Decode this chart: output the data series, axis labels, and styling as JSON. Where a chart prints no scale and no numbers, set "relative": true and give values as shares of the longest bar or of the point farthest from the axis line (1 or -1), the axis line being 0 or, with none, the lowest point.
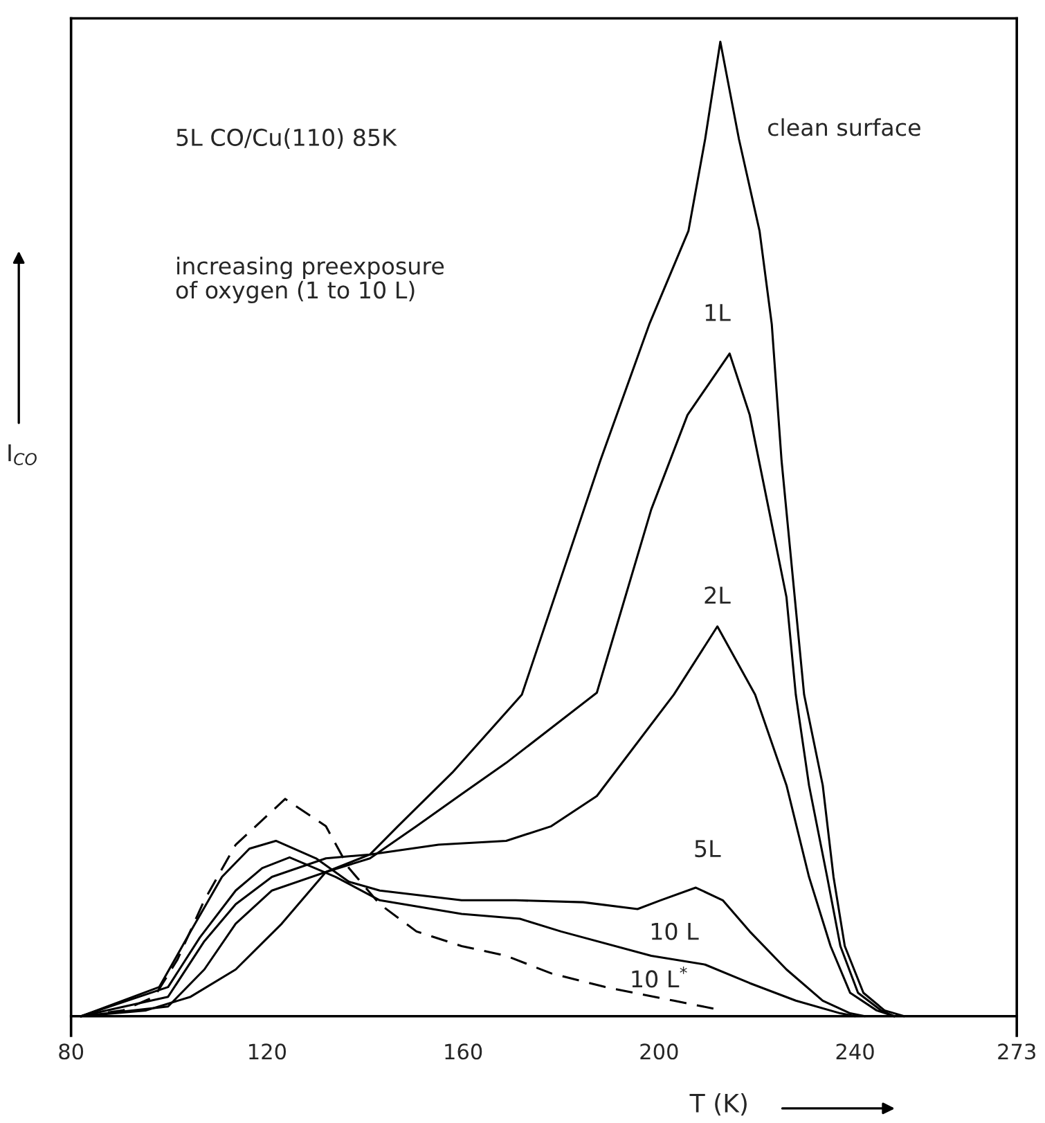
{
  "chart_data": {
    "type": "line",
    "relative": true,
    "xlabel": "T (K)",
    "ylabel": "I$_{CO}$",
    "xlim": [
      80,
      273
    ],
    "xticks": [
      80,
      120,
      160,
      200,
      240,
      273
    ],
    "legend": false,
    "grid": false,
    "marker": "none",
    "annotations": [
      "5L CO/Cu(110) 85K",
      "increasing preexposure\nof oxygen (1 to 10 L)"
    ],
    "series": [
      {
        "name": "clean surface",
        "color": "#000000",
        "line_style": "solid",
        "x": [
          82,
          95.3,
          104.4,
          113.6,
          123,
          132,
          141,
          146.7,
          157.8,
          172,
          188,
          198,
          206,
          209.4,
          212.5,
          216.3,
          220.5,
          223,
          225,
          229.6,
          233.4,
          235.6,
          237.9,
          241.7,
          246,
          250
        ],
        "values": [
          0,
          0.006,
          0.02,
          0.048,
          0.095,
          0.148,
          0.166,
          0.195,
          0.25,
          0.33,
          0.57,
          0.71,
          0.806,
          0.9,
          1,
          0.9,
          0.806,
          0.71,
          0.57,
          0.33,
          0.237,
          0.143,
          0.072,
          0.024,
          0.006,
          0
        ]
      },
      {
        "name": "1L",
        "color": "#000000",
        "line_style": "solid",
        "x": [
          82,
          99.8,
          107.2,
          113.6,
          121,
          132,
          141,
          150.5,
          159.7,
          168.8,
          187.3,
          198.4,
          205.8,
          214.4,
          218.5,
          222.4,
          226,
          227.9,
          230.6,
          234.3,
          237,
          240.6,
          245.3,
          248
        ],
        "values": [
          0,
          0.01,
          0.048,
          0.095,
          0.129,
          0.148,
          0.162,
          0.195,
          0.228,
          0.26,
          0.332,
          0.52,
          0.617,
          0.68,
          0.617,
          0.52,
          0.43,
          0.33,
          0.237,
          0.143,
          0.072,
          0.024,
          0.006,
          0
        ]
      },
      {
        "name": "2L",
        "color": "#000000",
        "line_style": "solid",
        "x": [
          82,
          99.8,
          107.2,
          113.6,
          121,
          132,
          141,
          155,
          168.8,
          178,
          187.3,
          203,
          211.9,
          219.6,
          226,
          230.6,
          235,
          239,
          244.4,
          248
        ],
        "values": [
          0,
          0.02,
          0.077,
          0.115,
          0.143,
          0.162,
          0.166,
          0.176,
          0.18,
          0.195,
          0.226,
          0.33,
          0.4,
          0.33,
          0.237,
          0.143,
          0.072,
          0.024,
          0.006,
          0
        ]
      },
      {
        "name": "5L",
        "color": "#000000",
        "line_style": "solid",
        "x": [
          82,
          98,
          104.4,
          110.8,
          116.4,
          121.8,
          130,
          136.7,
          143,
          159.7,
          170.7,
          184.5,
          195.6,
          200.3,
          207.5,
          213,
          218.5,
          226,
          233.4,
          239,
          242
        ],
        "values": [
          0,
          0.03,
          0.087,
          0.143,
          0.172,
          0.18,
          0.162,
          0.138,
          0.129,
          0.119,
          0.119,
          0.117,
          0.11,
          0.119,
          0.132,
          0.119,
          0.087,
          0.048,
          0.016,
          0.003,
          0
        ]
      },
      {
        "name": "10 L",
        "color": "#000000",
        "line_style": "solid",
        "x": [
          82,
          99.8,
          106.3,
          113.6,
          119,
          124.6,
          134,
          143,
          159.7,
          171.6,
          180,
          198.4,
          209.4,
          218.5,
          227.9,
          237,
          240
        ],
        "values": [
          0,
          0.03,
          0.081,
          0.129,
          0.152,
          0.163,
          0.143,
          0.119,
          0.105,
          0.1,
          0.087,
          0.062,
          0.053,
          0.034,
          0.016,
          0.003,
          0
        ]
      },
      {
        "name": "10 L$^{*}$",
        "color": "#000000",
        "line_style": "dashed",
        "x": [
          82,
          90.6,
          97,
          101.7,
          107.2,
          113.6,
          123.7,
          132,
          136.7,
          143,
          150.5,
          159.7,
          168.8,
          178,
          189,
          203,
          213
        ],
        "values": [
          0,
          0.006,
          0.02,
          0.058,
          0.119,
          0.176,
          0.223,
          0.195,
          0.152,
          0.115,
          0.087,
          0.072,
          0.062,
          0.044,
          0.03,
          0.016,
          0.006
        ]
      }
    ]
  }
}
